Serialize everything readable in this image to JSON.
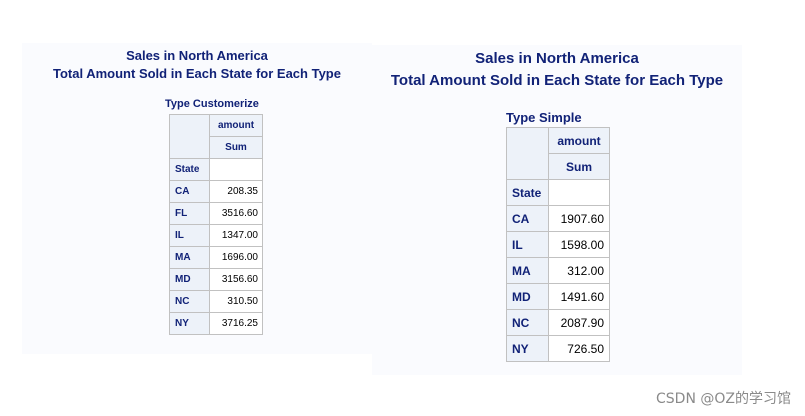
{
  "left": {
    "title1": "Sales in North America",
    "title2": "Total Amount Sold in Each State for Each Type",
    "caption": "Type Customerize",
    "col_header": "amount",
    "stat_header": "Sum",
    "row_header": "State",
    "rows": [
      {
        "state": "CA",
        "value": "208.35"
      },
      {
        "state": "FL",
        "value": "3516.60"
      },
      {
        "state": "IL",
        "value": "1347.00"
      },
      {
        "state": "MA",
        "value": "1696.00"
      },
      {
        "state": "MD",
        "value": "3156.60"
      },
      {
        "state": "NC",
        "value": "310.50"
      },
      {
        "state": "NY",
        "value": "3716.25"
      }
    ]
  },
  "right": {
    "title1": "Sales in North America",
    "title2": "Total Amount Sold in Each State for Each Type",
    "caption": "Type Simple",
    "col_header": "amount",
    "stat_header": "Sum",
    "row_header": "State",
    "rows": [
      {
        "state": "CA",
        "value": "1907.60"
      },
      {
        "state": "IL",
        "value": "1598.00"
      },
      {
        "state": "MA",
        "value": "312.00"
      },
      {
        "state": "MD",
        "value": "1491.60"
      },
      {
        "state": "NC",
        "value": "2087.90"
      },
      {
        "state": "NY",
        "value": "726.50"
      }
    ]
  },
  "watermark": "CSDN @OZ的学习馆",
  "colors": {
    "heading": "#112277",
    "header_bg": "#edf2f9",
    "panel_bg": "#fafbfe",
    "border": "#c1c1c1"
  }
}
